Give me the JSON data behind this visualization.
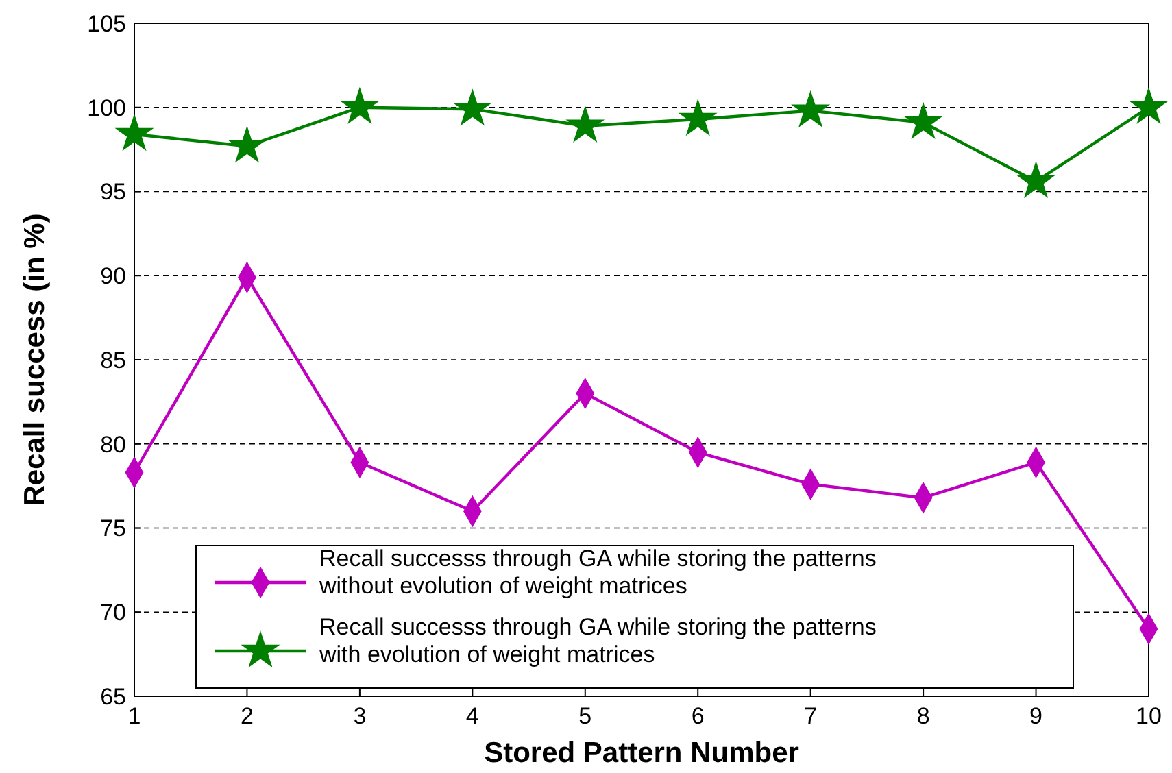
{
  "chart_data": {
    "type": "line",
    "xlabel": "Stored Pattern Number",
    "ylabel": "Recall success (in %)",
    "x": [
      1,
      2,
      3,
      4,
      5,
      6,
      7,
      8,
      9,
      10
    ],
    "series": [
      {
        "name": "Recall successs through GA while storing the patterns\nwithout evolution of weight matrices",
        "color": "#c000c0",
        "marker": "diamond",
        "values": [
          78.3,
          89.9,
          78.9,
          76.0,
          83.0,
          79.5,
          77.6,
          76.8,
          78.9,
          69.0
        ]
      },
      {
        "name": "Recall successs through GA while storing the patterns\nwith evolution of weight matrices",
        "color": "#007f00",
        "marker": "star",
        "values": [
          98.4,
          97.7,
          100.0,
          99.9,
          98.9,
          99.3,
          99.8,
          99.1,
          95.6,
          100.0
        ]
      }
    ],
    "xlim": [
      1,
      10
    ],
    "xticks": [
      1,
      2,
      3,
      4,
      5,
      6,
      7,
      8,
      9,
      10
    ],
    "ylim": [
      65,
      105
    ],
    "yticks": [
      65,
      70,
      75,
      80,
      85,
      90,
      95,
      100,
      105
    ],
    "grid": "y",
    "legend": "bottom",
    "line_style": "solid"
  }
}
